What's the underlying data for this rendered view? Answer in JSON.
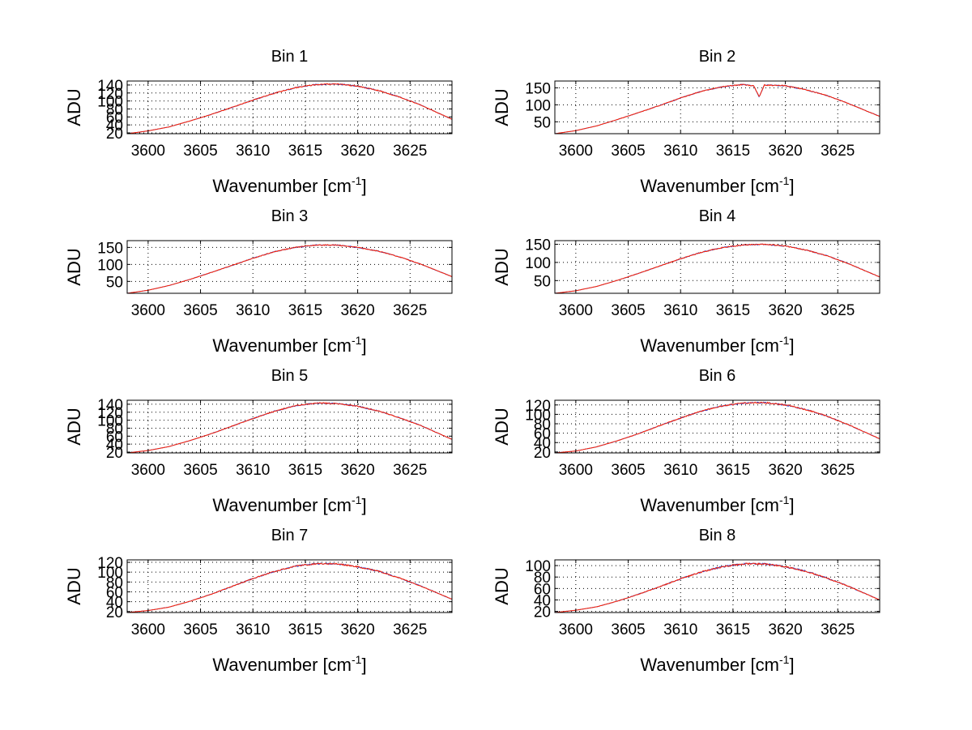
{
  "chart_data": {
    "type": "line",
    "layout": "4x2 grid of subplots",
    "colors": {
      "series_blue": "#1f3bd6",
      "series_red": "#ff2200"
    },
    "series_names": [
      "series blue (under)",
      "series red (over)"
    ],
    "subplots": [
      {
        "title": "Bin 1",
        "xlabel": "Wavenumber [cm",
        "xlabel_sup": "-1",
        "xlabel_close": "]",
        "ylabel": "ADU",
        "xlim": [
          3598,
          3629
        ],
        "ylim": [
          18,
          150
        ],
        "xticks": [
          3600,
          3605,
          3610,
          3615,
          3620,
          3625
        ],
        "yticks": [
          20,
          40,
          60,
          80,
          100,
          120,
          140
        ],
        "ytick_labels": [
          "20",
          "40",
          "60",
          "80",
          "100",
          "120",
          "140"
        ],
        "series": [
          {
            "name": "series blue",
            "x": [
              3598,
              3600,
              3602,
              3604,
              3606,
              3608,
              3610,
              3612,
              3614,
              3616,
              3618,
              3620,
              3622,
              3624,
              3626,
              3629
            ],
            "y": [
              18,
              25,
              35,
              50,
              66,
              84,
              102,
              119,
              133,
              141,
              143,
              137,
              126,
              110,
              90,
              54
            ]
          },
          {
            "name": "series red",
            "x": [
              3598,
              3600,
              3602,
              3604,
              3606,
              3608,
              3610,
              3612,
              3614,
              3616,
              3618,
              3620,
              3622,
              3624,
              3626,
              3629
            ],
            "y": [
              18,
              25,
              35,
              50,
              66,
              84,
              102,
              119,
              133,
              141,
              143,
              137,
              126,
              110,
              90,
              54
            ]
          }
        ]
      },
      {
        "title": "Bin 2",
        "xlabel": "Wavenumber [cm",
        "xlabel_sup": "-1",
        "xlabel_close": "]",
        "ylabel": "ADU",
        "xlim": [
          3598,
          3629
        ],
        "ylim": [
          15,
          170
        ],
        "xticks": [
          3600,
          3605,
          3610,
          3615,
          3620,
          3625
        ],
        "yticks": [
          50,
          100,
          150
        ],
        "ytick_labels": [
          "50",
          "100",
          "150"
        ],
        "series": [
          {
            "name": "series blue",
            "x": [
              3598,
              3600,
              3602,
              3604,
              3606,
              3608,
              3610,
              3612,
              3614,
              3616,
              3617,
              3617.5,
              3618,
              3620,
              3622,
              3624,
              3626,
              3629
            ],
            "y": [
              15,
              24,
              38,
              57,
              77,
              98,
              120,
              140,
              153,
              160,
              155,
              124,
              158,
              156,
              144,
              127,
              104,
              66
            ]
          },
          {
            "name": "series red",
            "x": [
              3598,
              3600,
              3602,
              3604,
              3606,
              3608,
              3610,
              3612,
              3614,
              3616,
              3617,
              3617.5,
              3618,
              3620,
              3622,
              3624,
              3626,
              3629
            ],
            "y": [
              15,
              24,
              38,
              57,
              77,
              98,
              120,
              140,
              153,
              160,
              155,
              124,
              158,
              156,
              144,
              127,
              104,
              66
            ]
          }
        ]
      },
      {
        "title": "Bin 3",
        "xlabel": "Wavenumber [cm",
        "xlabel_sup": "-1",
        "xlabel_close": "]",
        "ylabel": "ADU",
        "xlim": [
          3598,
          3629
        ],
        "ylim": [
          15,
          170
        ],
        "xticks": [
          3600,
          3605,
          3610,
          3615,
          3620,
          3625
        ],
        "yticks": [
          50,
          100,
          150
        ],
        "ytick_labels": [
          "50",
          "100",
          "150"
        ],
        "series": [
          {
            "name": "series blue",
            "x": [
              3598,
              3600,
              3602,
              3604,
              3606,
              3608,
              3610,
              3612,
              3614,
              3616,
              3618,
              3620,
              3622,
              3624,
              3626,
              3629
            ],
            "y": [
              15,
              24,
              38,
              56,
              76,
              97,
              118,
              137,
              150,
              157,
              157,
              150,
              139,
              122,
              101,
              64
            ]
          },
          {
            "name": "series red",
            "x": [
              3598,
              3600,
              3602,
              3604,
              3606,
              3608,
              3610,
              3612,
              3614,
              3616,
              3618,
              3620,
              3622,
              3624,
              3626,
              3629
            ],
            "y": [
              15,
              24,
              38,
              56,
              76,
              97,
              118,
              137,
              150,
              157,
              157,
              150,
              139,
              122,
              101,
              64
            ]
          }
        ]
      },
      {
        "title": "Bin 4",
        "xlabel": "Wavenumber [cm",
        "xlabel_sup": "-1",
        "xlabel_close": "]",
        "ylabel": "ADU",
        "xlim": [
          3598,
          3629
        ],
        "ylim": [
          15,
          160
        ],
        "xticks": [
          3600,
          3605,
          3610,
          3615,
          3620,
          3625
        ],
        "yticks": [
          50,
          100,
          150
        ],
        "ytick_labels": [
          "50",
          "100",
          "150"
        ],
        "series": [
          {
            "name": "series blue",
            "x": [
              3598,
              3600,
              3602,
              3604,
              3606,
              3608,
              3610,
              3612,
              3614,
              3616,
              3618,
              3620,
              3622,
              3624,
              3626,
              3629
            ],
            "y": [
              15,
              22,
              34,
              51,
              70,
              90,
              110,
              128,
              141,
              148,
              150,
              145,
              134,
              118,
              97,
              60
            ]
          },
          {
            "name": "series red",
            "x": [
              3598,
              3600,
              3602,
              3604,
              3606,
              3608,
              3610,
              3612,
              3614,
              3616,
              3618,
              3620,
              3622,
              3624,
              3626,
              3629
            ],
            "y": [
              15,
              22,
              34,
              51,
              70,
              90,
              110,
              128,
              141,
              148,
              150,
              145,
              134,
              118,
              97,
              60
            ]
          }
        ]
      },
      {
        "title": "Bin 5",
        "xlabel": "Wavenumber [cm",
        "xlabel_sup": "-1",
        "xlabel_close": "]",
        "ylabel": "ADU",
        "xlim": [
          3598,
          3629
        ],
        "ylim": [
          18,
          150
        ],
        "xticks": [
          3600,
          3605,
          3610,
          3615,
          3620,
          3625
        ],
        "yticks": [
          20,
          40,
          60,
          80,
          100,
          120,
          140
        ],
        "ytick_labels": [
          "20",
          "40",
          "60",
          "80",
          "100",
          "120",
          "140"
        ],
        "series": [
          {
            "name": "series blue",
            "x": [
              3598,
              3600,
              3602,
              3604,
              3606,
              3608,
              3610,
              3612,
              3614,
              3616,
              3618,
              3620,
              3622,
              3624,
              3626,
              3629
            ],
            "y": [
              18,
              24,
              34,
              49,
              66,
              85,
              104,
              122,
              136,
              143,
              142,
              135,
              123,
              106,
              87,
              52
            ]
          },
          {
            "name": "series red",
            "x": [
              3598,
              3600,
              3602,
              3604,
              3606,
              3608,
              3610,
              3612,
              3614,
              3616,
              3618,
              3620,
              3622,
              3624,
              3626,
              3629
            ],
            "y": [
              18,
              24,
              34,
              49,
              66,
              85,
              104,
              122,
              136,
              143,
              142,
              135,
              123,
              106,
              87,
              52
            ]
          }
        ]
      },
      {
        "title": "Bin 6",
        "xlabel": "Wavenumber [cm",
        "xlabel_sup": "-1",
        "xlabel_close": "]",
        "ylabel": "ADU",
        "xlim": [
          3598,
          3629
        ],
        "ylim": [
          18,
          130
        ],
        "xticks": [
          3600,
          3605,
          3610,
          3615,
          3620,
          3625
        ],
        "yticks": [
          20,
          40,
          60,
          80,
          100,
          120
        ],
        "ytick_labels": [
          "20",
          "40",
          "60",
          "80",
          "100",
          "120"
        ],
        "series": [
          {
            "name": "series blue",
            "x": [
              3598,
              3600,
              3602,
              3604,
              3606,
              3608,
              3610,
              3612,
              3614,
              3616,
              3618,
              3620,
              3622,
              3624,
              3626,
              3629
            ],
            "y": [
              18,
              22,
              31,
              44,
              59,
              76,
              92,
              107,
              118,
              124,
              125,
              120,
              110,
              96,
              78,
              48
            ]
          },
          {
            "name": "series red",
            "x": [
              3598,
              3600,
              3602,
              3604,
              3606,
              3608,
              3610,
              3612,
              3614,
              3616,
              3618,
              3620,
              3622,
              3624,
              3626,
              3629
            ],
            "y": [
              18,
              22,
              31,
              44,
              59,
              76,
              92,
              107,
              118,
              124,
              125,
              120,
              110,
              96,
              78,
              48
            ]
          }
        ]
      },
      {
        "title": "Bin 7",
        "xlabel": "Wavenumber [cm",
        "xlabel_sup": "-1",
        "xlabel_close": "]",
        "ylabel": "ADU",
        "xlim": [
          3598,
          3629
        ],
        "ylim": [
          18,
          125
        ],
        "xticks": [
          3600,
          3605,
          3610,
          3615,
          3620,
          3625
        ],
        "yticks": [
          20,
          40,
          60,
          80,
          100,
          120
        ],
        "ytick_labels": [
          "20",
          "40",
          "60",
          "80",
          "100",
          "120"
        ],
        "series": [
          {
            "name": "series blue",
            "x": [
              3598,
              3600,
              3602,
              3604,
              3606,
              3608,
              3610,
              3612,
              3614,
              3616,
              3618,
              3620,
              3622,
              3624,
              3626,
              3629
            ],
            "y": [
              18,
              22,
              29,
              41,
              55,
              71,
              87,
              101,
              112,
              117,
              117,
              111,
              102,
              88,
              72,
              45
            ]
          },
          {
            "name": "series red",
            "x": [
              3598,
              3600,
              3602,
              3604,
              3606,
              3608,
              3610,
              3612,
              3614,
              3616,
              3618,
              3620,
              3622,
              3624,
              3626,
              3629
            ],
            "y": [
              18,
              22,
              29,
              41,
              55,
              71,
              87,
              101,
              112,
              117,
              117,
              111,
              102,
              88,
              72,
              45
            ]
          }
        ]
      },
      {
        "title": "Bin 8",
        "xlabel": "Wavenumber [cm",
        "xlabel_sup": "-1",
        "xlabel_close": "]",
        "ylabel": "ADU",
        "xlim": [
          3598,
          3629
        ],
        "ylim": [
          18,
          110
        ],
        "xticks": [
          3600,
          3605,
          3610,
          3615,
          3620,
          3625
        ],
        "yticks": [
          20,
          40,
          60,
          80,
          100
        ],
        "ytick_labels": [
          "20",
          "40",
          "60",
          "80",
          "100"
        ],
        "series": [
          {
            "name": "series blue",
            "x": [
              3598,
              3600,
              3602,
              3604,
              3606,
              3608,
              3610,
              3612,
              3614,
              3616,
              3618,
              3620,
              3622,
              3624,
              3626,
              3629
            ],
            "y": [
              18,
              22,
              28,
              38,
              50,
              63,
              77,
              89,
              98,
              103,
              103,
              98,
              90,
              78,
              64,
              40
            ]
          },
          {
            "name": "series red",
            "x": [
              3598,
              3600,
              3602,
              3604,
              3606,
              3608,
              3610,
              3612,
              3614,
              3616,
              3618,
              3620,
              3622,
              3624,
              3626,
              3629
            ],
            "y": [
              18,
              22,
              28,
              38,
              50,
              63,
              77,
              89,
              98,
              103,
              103,
              98,
              90,
              78,
              64,
              40
            ]
          }
        ]
      }
    ]
  }
}
